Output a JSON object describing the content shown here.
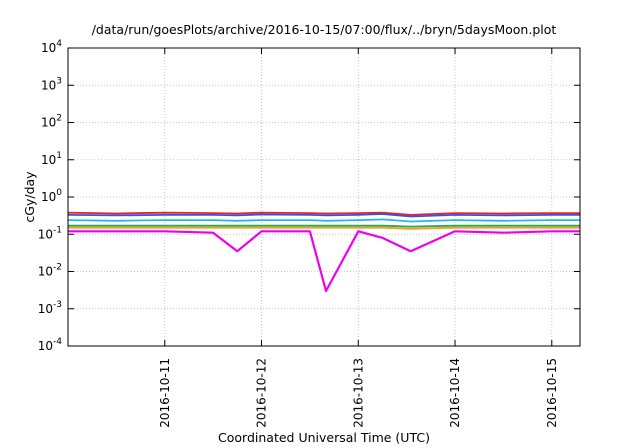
{
  "chart_data": {
    "type": "line",
    "title": "/data/run/goesPlots/archive/2016-10-15/07:00/flux/../bryn/5daysMoon.plot",
    "xlabel": "Coordinated Universal Time (UTC)",
    "ylabel": "cGy/day",
    "yscale": "log",
    "ylim": [
      0.0001,
      10000
    ],
    "xlim": [
      "2016-10-10 00:00",
      "2016-10-15 07:00"
    ],
    "grid": true,
    "legend": "none",
    "y_ticks": [
      {
        "base": "10",
        "exp": "-4"
      },
      {
        "base": "10",
        "exp": "-3"
      },
      {
        "base": "10",
        "exp": "-2"
      },
      {
        "base": "10",
        "exp": "-1"
      },
      {
        "base": "10",
        "exp": "0"
      },
      {
        "base": "10",
        "exp": "1"
      },
      {
        "base": "10",
        "exp": "2"
      },
      {
        "base": "10",
        "exp": "3"
      },
      {
        "base": "10",
        "exp": "4"
      }
    ],
    "x_ticks": [
      "2016-10-11",
      "2016-10-12",
      "2016-10-13",
      "2016-10-14",
      "2016-10-15"
    ],
    "x": [
      "2016-10-10 00:00",
      "2016-10-10 12:00",
      "2016-10-11 00:00",
      "2016-10-11 12:00",
      "2016-10-11 18:00",
      "2016-10-12 00:00",
      "2016-10-12 12:00",
      "2016-10-12 16:00",
      "2016-10-13 00:00",
      "2016-10-13 06:00",
      "2016-10-13 13:00",
      "2016-10-14 00:00",
      "2016-10-14 12:00",
      "2016-10-15 00:00",
      "2016-10-15 07:00"
    ],
    "series": [
      {
        "color": "#e8222a",
        "values": [
          0.38,
          0.36,
          0.38,
          0.37,
          0.36,
          0.38,
          0.37,
          0.36,
          0.37,
          0.38,
          0.33,
          0.37,
          0.36,
          0.37,
          0.37
        ]
      },
      {
        "color": "#3355dd",
        "values": [
          0.33,
          0.32,
          0.33,
          0.33,
          0.32,
          0.34,
          0.33,
          0.32,
          0.33,
          0.35,
          0.3,
          0.33,
          0.32,
          0.33,
          0.33
        ]
      },
      {
        "color": "#22bbdd",
        "values": [
          0.24,
          0.23,
          0.24,
          0.24,
          0.23,
          0.24,
          0.24,
          0.23,
          0.24,
          0.25,
          0.22,
          0.24,
          0.23,
          0.24,
          0.24
        ]
      },
      {
        "color": "#22aa55",
        "values": [
          0.17,
          0.17,
          0.17,
          0.17,
          0.17,
          0.17,
          0.17,
          0.17,
          0.17,
          0.17,
          0.16,
          0.17,
          0.17,
          0.17,
          0.17
        ]
      },
      {
        "color": "#f0a020",
        "values": [
          0.15,
          0.15,
          0.15,
          0.15,
          0.15,
          0.15,
          0.15,
          0.15,
          0.15,
          0.15,
          0.14,
          0.15,
          0.15,
          0.15,
          0.15
        ]
      },
      {
        "color": "#ee00ee",
        "values": [
          0.12,
          0.12,
          0.12,
          0.11,
          0.035,
          0.12,
          0.12,
          0.003,
          0.12,
          0.08,
          0.035,
          0.12,
          0.11,
          0.12,
          0.12
        ]
      }
    ]
  }
}
